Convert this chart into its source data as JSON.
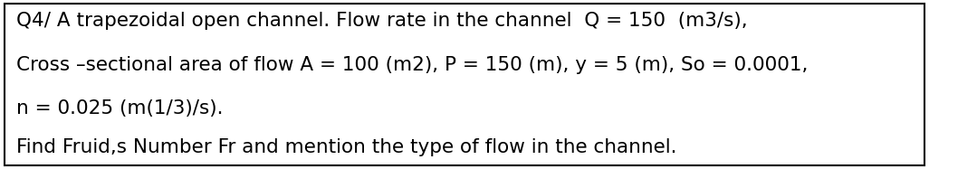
{
  "line1": "Q4/ A trapezoidal open channel. Flow rate in the channel  Q = 150  (m3/s),",
  "line2": "Cross –sectional area of flow A = 100 (m2), P = 150 (m), y = 5 (m), So = 0.0001,",
  "line3": "n = 0.025 (m(1/3)/s).",
  "line4": "Find Fruid,s Number Fr and mention the type of flow in the channel.",
  "background_color": "#ffffff",
  "border_color": "#000000",
  "text_color": "#000000",
  "font_size": 15.5,
  "font_family": "DejaVu Sans",
  "fig_width": 10.79,
  "fig_height": 1.87,
  "dpi": 100
}
